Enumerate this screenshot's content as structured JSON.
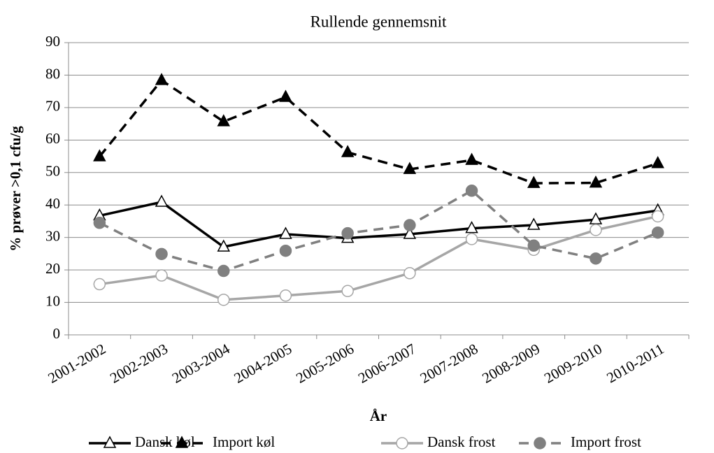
{
  "chart_data": {
    "type": "line",
    "title": "Rullende gennemsnit",
    "xlabel": "År",
    "ylabel": "% prøver >0,1 cfu/g",
    "categories": [
      "2001-2002",
      "2002-2003",
      "2003-2004",
      "2004-2005",
      "2005-2006",
      "2006-2007",
      "2007-2008",
      "2008-2009",
      "2009-2010",
      "2010-2011"
    ],
    "series": [
      {
        "name": "Dansk køl",
        "color": "#000000",
        "line_style": "solid",
        "marker": "triangle",
        "marker_fill": "#ffffff",
        "values": [
          36.7,
          40.9,
          27.1,
          31,
          29.8,
          31,
          32.8,
          33.8,
          35.5,
          38.3
        ]
      },
      {
        "name": "Import køl",
        "color": "#000000",
        "line_style": "dashed",
        "marker": "triangle",
        "marker_fill": "#000000",
        "values": [
          54.9,
          78.4,
          65.7,
          73.2,
          56.2,
          51,
          53.8,
          46.7,
          46.8,
          52.8
        ]
      },
      {
        "name": "Dansk frost",
        "color": "#a6a6a6",
        "line_style": "solid",
        "marker": "circle",
        "marker_fill": "#ffffff",
        "values": [
          15.6,
          18.3,
          10.8,
          12.1,
          13.5,
          19,
          29.5,
          26.2,
          32.3,
          36.5
        ]
      },
      {
        "name": "Import frost",
        "color": "#808080",
        "line_style": "dashed",
        "marker": "circle",
        "marker_fill": "#808080",
        "values": [
          34.5,
          24.9,
          19.7,
          25.9,
          31.3,
          33.8,
          44.4,
          27.5,
          23.5,
          31.5
        ]
      }
    ],
    "ylim": [
      0,
      90
    ],
    "yticks": [
      0,
      10,
      20,
      30,
      40,
      50,
      60,
      70,
      80,
      90
    ],
    "grid": true,
    "legend": "bottom"
  }
}
